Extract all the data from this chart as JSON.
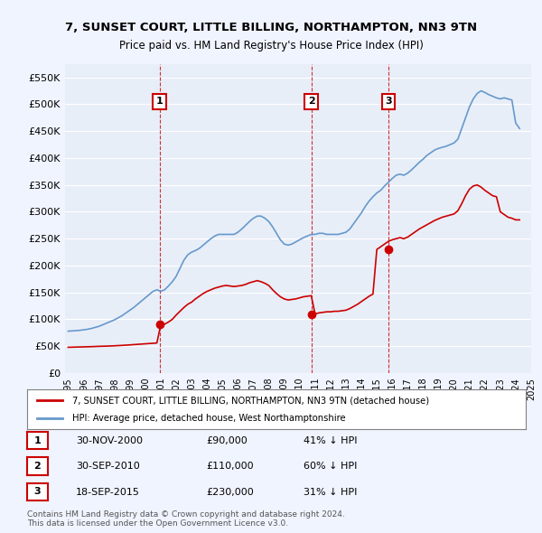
{
  "title": "7, SUNSET COURT, LITTLE BILLING, NORTHAMPTON, NN3 9TN",
  "subtitle": "Price paid vs. HM Land Registry's House Price Index (HPI)",
  "ylim": [
    0,
    575000
  ],
  "yticks": [
    0,
    50000,
    100000,
    150000,
    200000,
    250000,
    300000,
    350000,
    400000,
    450000,
    500000,
    550000
  ],
  "ylabel_format": "£{0}K",
  "bg_color": "#f0f4ff",
  "plot_bg_color": "#e8eef8",
  "grid_color": "#ffffff",
  "hpi_color": "#6699cc",
  "price_color": "#cc0000",
  "marker_color": "#cc0000",
  "vline_color": "#cc0000",
  "sale_dates": [
    "2000-11-30",
    "2010-09-30",
    "2015-09-18"
  ],
  "sale_prices": [
    90000,
    110000,
    230000
  ],
  "sale_labels": [
    "1",
    "2",
    "3"
  ],
  "legend_line1": "7, SUNSET COURT, LITTLE BILLING, NORTHAMPTON, NN3 9TN (detached house)",
  "legend_line2": "HPI: Average price, detached house, West Northamptonshire",
  "table_rows": [
    [
      "1",
      "30-NOV-2000",
      "£90,000",
      "41% ↓ HPI"
    ],
    [
      "2",
      "30-SEP-2010",
      "£110,000",
      "60% ↓ HPI"
    ],
    [
      "3",
      "18-SEP-2015",
      "£230,000",
      "31% ↓ HPI"
    ]
  ],
  "footnote": "Contains HM Land Registry data © Crown copyright and database right 2024.\nThis data is licensed under the Open Government Licence v3.0.",
  "hpi_x": [
    1995.0,
    1995.25,
    1995.5,
    1995.75,
    1996.0,
    1996.25,
    1996.5,
    1996.75,
    1997.0,
    1997.25,
    1997.5,
    1997.75,
    1998.0,
    1998.25,
    1998.5,
    1998.75,
    1999.0,
    1999.25,
    1999.5,
    1999.75,
    2000.0,
    2000.25,
    2000.5,
    2000.75,
    2001.0,
    2001.25,
    2001.5,
    2001.75,
    2002.0,
    2002.25,
    2002.5,
    2002.75,
    2003.0,
    2003.25,
    2003.5,
    2003.75,
    2004.0,
    2004.25,
    2004.5,
    2004.75,
    2005.0,
    2005.25,
    2005.5,
    2005.75,
    2006.0,
    2006.25,
    2006.5,
    2006.75,
    2007.0,
    2007.25,
    2007.5,
    2007.75,
    2008.0,
    2008.25,
    2008.5,
    2008.75,
    2009.0,
    2009.25,
    2009.5,
    2009.75,
    2010.0,
    2010.25,
    2010.5,
    2010.75,
    2011.0,
    2011.25,
    2011.5,
    2011.75,
    2012.0,
    2012.25,
    2012.5,
    2012.75,
    2013.0,
    2013.25,
    2013.5,
    2013.75,
    2014.0,
    2014.25,
    2014.5,
    2014.75,
    2015.0,
    2015.25,
    2015.5,
    2015.75,
    2016.0,
    2016.25,
    2016.5,
    2016.75,
    2017.0,
    2017.25,
    2017.5,
    2017.75,
    2018.0,
    2018.25,
    2018.5,
    2018.75,
    2019.0,
    2019.25,
    2019.5,
    2019.75,
    2020.0,
    2020.25,
    2020.5,
    2020.75,
    2021.0,
    2021.25,
    2021.5,
    2021.75,
    2022.0,
    2022.25,
    2022.5,
    2022.75,
    2023.0,
    2023.25,
    2023.5,
    2023.75,
    2024.0,
    2024.25
  ],
  "hpi_y": [
    78000,
    78500,
    79000,
    79500,
    80500,
    81500,
    83000,
    85000,
    87000,
    90000,
    93000,
    96000,
    99000,
    103000,
    107000,
    112000,
    117000,
    122000,
    128000,
    134000,
    140000,
    146000,
    152000,
    155000,
    152000,
    155000,
    162000,
    170000,
    180000,
    195000,
    210000,
    220000,
    225000,
    228000,
    232000,
    238000,
    244000,
    250000,
    255000,
    258000,
    258000,
    258000,
    258000,
    258000,
    262000,
    268000,
    275000,
    282000,
    288000,
    292000,
    292000,
    288000,
    282000,
    272000,
    260000,
    248000,
    240000,
    238000,
    240000,
    244000,
    248000,
    252000,
    255000,
    258000,
    258000,
    260000,
    260000,
    258000,
    258000,
    258000,
    258000,
    260000,
    262000,
    268000,
    278000,
    288000,
    298000,
    310000,
    320000,
    328000,
    335000,
    340000,
    348000,
    355000,
    362000,
    368000,
    370000,
    368000,
    372000,
    378000,
    385000,
    392000,
    398000,
    405000,
    410000,
    415000,
    418000,
    420000,
    422000,
    425000,
    428000,
    435000,
    455000,
    475000,
    495000,
    510000,
    520000,
    525000,
    522000,
    518000,
    515000,
    512000,
    510000,
    512000,
    510000,
    508000,
    465000,
    455000
  ],
  "price_x": [
    1995.0,
    1995.25,
    1995.5,
    1995.75,
    1996.0,
    1996.25,
    1996.5,
    1996.75,
    1997.0,
    1997.25,
    1997.5,
    1997.75,
    1998.0,
    1998.25,
    1998.5,
    1998.75,
    1999.0,
    1999.25,
    1999.5,
    1999.75,
    2000.0,
    2000.25,
    2000.5,
    2000.75,
    2001.0,
    2001.25,
    2001.5,
    2001.75,
    2002.0,
    2002.25,
    2002.5,
    2002.75,
    2003.0,
    2003.25,
    2003.5,
    2003.75,
    2004.0,
    2004.25,
    2004.5,
    2004.75,
    2005.0,
    2005.25,
    2005.5,
    2005.75,
    2006.0,
    2006.25,
    2006.5,
    2006.75,
    2007.0,
    2007.25,
    2007.5,
    2007.75,
    2008.0,
    2008.25,
    2008.5,
    2008.75,
    2009.0,
    2009.25,
    2009.5,
    2009.75,
    2010.0,
    2010.25,
    2010.5,
    2010.75,
    2011.0,
    2011.25,
    2011.5,
    2011.75,
    2012.0,
    2012.25,
    2012.5,
    2012.75,
    2013.0,
    2013.25,
    2013.5,
    2013.75,
    2014.0,
    2014.25,
    2014.5,
    2014.75,
    2015.0,
    2015.25,
    2015.5,
    2015.75,
    2016.0,
    2016.25,
    2016.5,
    2016.75,
    2017.0,
    2017.25,
    2017.5,
    2017.75,
    2018.0,
    2018.25,
    2018.5,
    2018.75,
    2019.0,
    2019.25,
    2019.5,
    2019.75,
    2020.0,
    2020.25,
    2020.5,
    2020.75,
    2021.0,
    2021.25,
    2021.5,
    2021.75,
    2022.0,
    2022.25,
    2022.5,
    2022.75,
    2023.0,
    2023.25,
    2023.5,
    2023.75,
    2024.0,
    2024.25
  ],
  "price_y": [
    48000,
    48200,
    48400,
    48600,
    48800,
    49000,
    49200,
    49500,
    49800,
    50000,
    50200,
    50500,
    50800,
    51200,
    51600,
    52000,
    52500,
    53000,
    53500,
    54000,
    54500,
    55000,
    55500,
    56000,
    90000,
    91000,
    95000,
    100000,
    108000,
    115000,
    122000,
    128000,
    132000,
    138000,
    143000,
    148000,
    152000,
    155000,
    158000,
    160000,
    162000,
    163000,
    162000,
    161000,
    162000,
    163000,
    165000,
    168000,
    170000,
    172000,
    170000,
    167000,
    163000,
    155000,
    148000,
    142000,
    138000,
    136000,
    137000,
    138000,
    140000,
    142000,
    143000,
    144000,
    110000,
    112000,
    113000,
    114000,
    114000,
    115000,
    115000,
    116000,
    117000,
    120000,
    124000,
    128000,
    133000,
    138000,
    143000,
    147000,
    230000,
    235000,
    240000,
    245000,
    248000,
    250000,
    252000,
    250000,
    253000,
    258000,
    263000,
    268000,
    272000,
    276000,
    280000,
    284000,
    287000,
    290000,
    292000,
    294000,
    296000,
    302000,
    315000,
    330000,
    342000,
    348000,
    350000,
    346000,
    340000,
    335000,
    330000,
    328000,
    300000,
    295000,
    290000,
    288000,
    285000,
    285000
  ]
}
